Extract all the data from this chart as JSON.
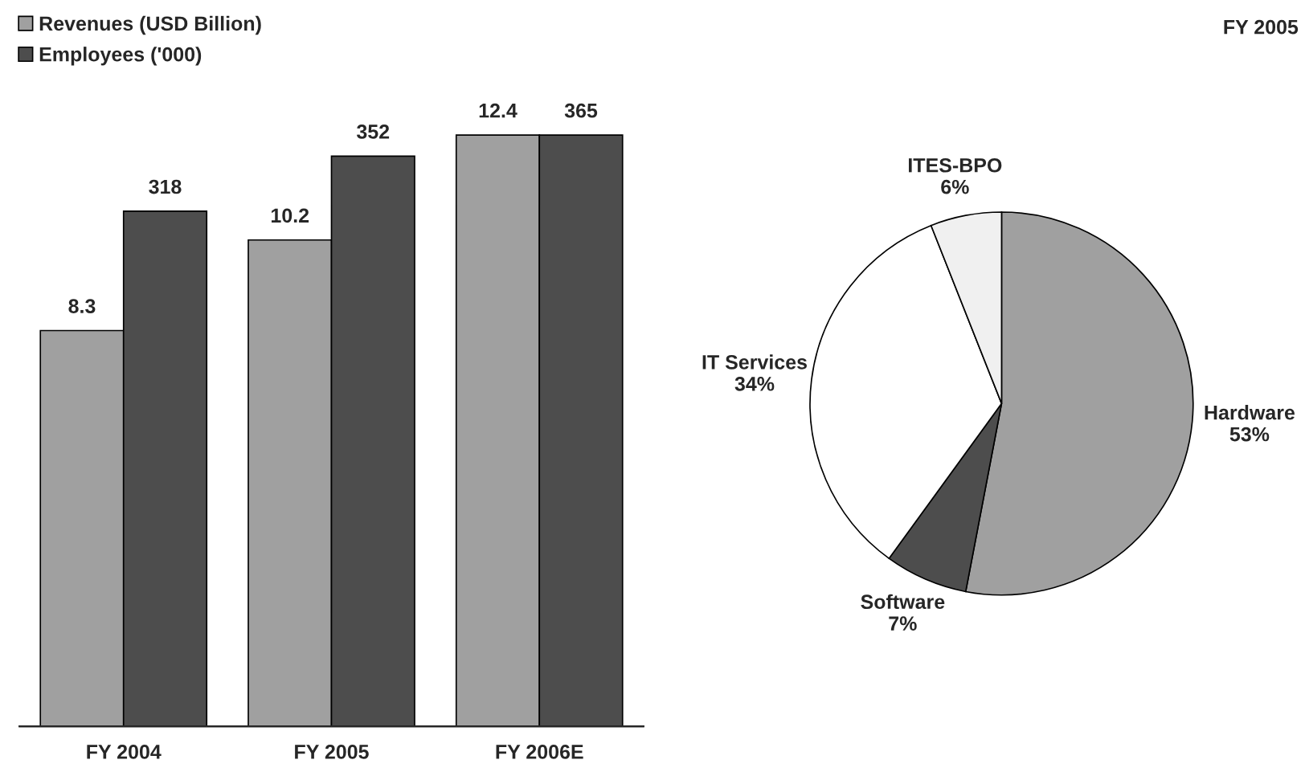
{
  "chart_data": [
    {
      "type": "bar",
      "categories": [
        "FY 2004",
        "FY 2005",
        "FY 2006E"
      ],
      "series": [
        {
          "name": "Revenues (USD Billion)",
          "color": "#a0a0a0",
          "values": [
            8.3,
            10.2,
            12.4
          ]
        },
        {
          "name": "Employees ('000)",
          "color": "#4d4d4d",
          "values": [
            318,
            352,
            365
          ],
          "axis": "y2"
        }
      ],
      "tick_labels": "x",
      "data_labels": true,
      "legend": "top left",
      "grid": false
    },
    {
      "type": "pie",
      "title": "FY 2005",
      "categories": [
        "Hardware",
        "Software",
        "IT Services",
        "ITES-BPO"
      ],
      "values": [
        53,
        7,
        34,
        6
      ],
      "value_labels": [
        "53%",
        "7%",
        "34%",
        "6%"
      ],
      "colors": [
        "#a0a0a0",
        "#4d4d4d",
        "#ffffff",
        "#f0f0f0"
      ]
    }
  ]
}
